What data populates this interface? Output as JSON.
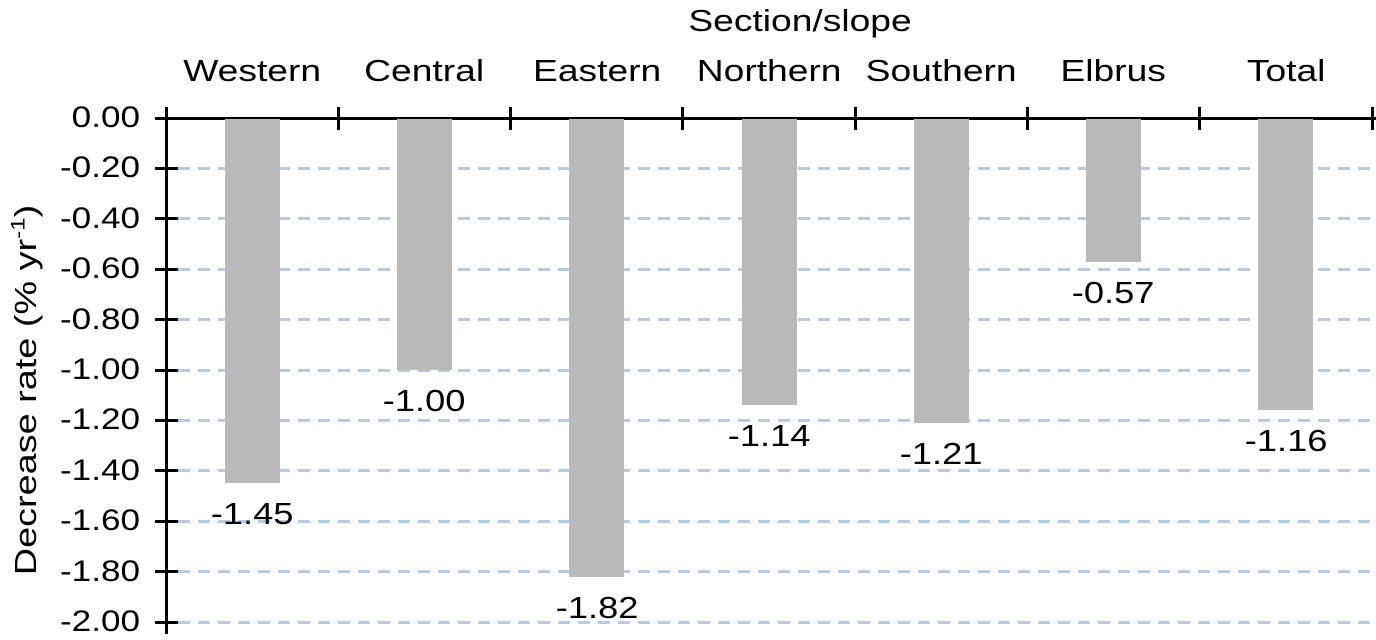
{
  "chart_data": {
    "type": "bar",
    "title": "Section/slope",
    "ylabel": "Decrease rate (% yr⁻¹)",
    "ylabel_parts": {
      "prefix": "Decrease rate (% yr",
      "superscript": "-1",
      "suffix": ")"
    },
    "categories": [
      "Western",
      "Central",
      "Eastern",
      "Northern",
      "Southern",
      "Elbrus",
      "Total"
    ],
    "values": [
      -1.45,
      -1.0,
      -1.82,
      -1.14,
      -1.21,
      -0.57,
      -1.16
    ],
    "data_labels": [
      "-1.45",
      "-1.00",
      "-1.82",
      "-1.14",
      "-1.21",
      "-0.57",
      "-1.16"
    ],
    "ylim": [
      -2.0,
      0.0
    ],
    "ytick_step": 0.2,
    "ytick_labels": [
      "0.00",
      "-0.20",
      "-0.40",
      "-0.60",
      "-0.80",
      "-1.00",
      "-1.20",
      "-1.40",
      "-1.60",
      "-1.80",
      "-2.00"
    ],
    "grid": "horizontal-dashed",
    "legend": "none",
    "bar_color": "#b9b9b9",
    "gridline_color": "#b9cbe0",
    "axis_color": "#000000",
    "text_color": "#000000"
  }
}
